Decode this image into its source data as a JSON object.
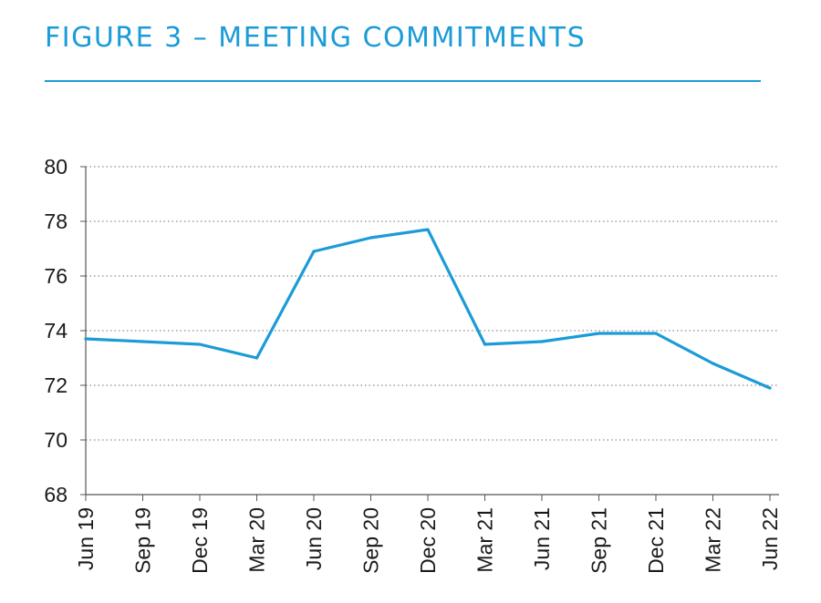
{
  "figure": {
    "title": "FIGURE 3 – MEETING COMMITMENTS"
  },
  "chart_data": {
    "type": "line",
    "title": "FIGURE 3 – MEETING COMMITMENTS",
    "xlabel": "",
    "ylabel": "",
    "categories": [
      "Jun 19",
      "Sep 19",
      "Dec 19",
      "Mar 20",
      "Jun 20",
      "Sep 20",
      "Dec 20",
      "Mar 21",
      "Jun 21",
      "Sep 21",
      "Dec 21",
      "Mar 22",
      "Jun 22"
    ],
    "series": [
      {
        "values": [
          73.7,
          73.6,
          73.5,
          73.0,
          76.9,
          77.4,
          77.7,
          73.5,
          73.6,
          73.9,
          73.9,
          72.8,
          71.9
        ]
      }
    ],
    "ylim": [
      68,
      80
    ],
    "yticks": [
      68,
      70,
      72,
      74,
      76,
      78,
      80
    ],
    "grid": "horizontal dotted",
    "legend": "none",
    "line_color": "#1b9bd7"
  }
}
